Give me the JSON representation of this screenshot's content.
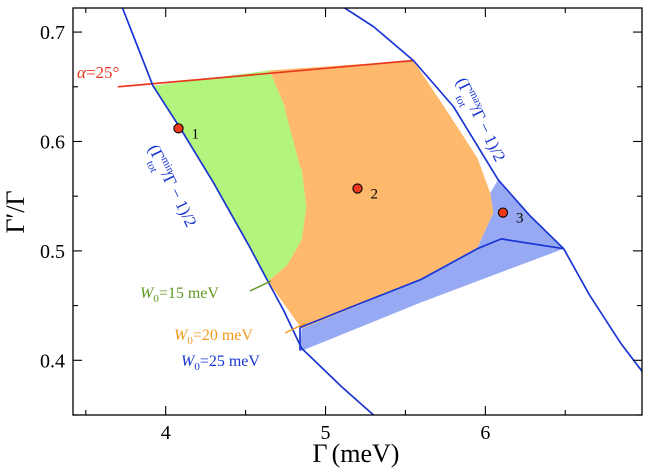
{
  "chart_data": {
    "type": "area",
    "xlabel": "Γ (meV)",
    "ylabel": "Γ′/Γ",
    "xlim": [
      3.42,
      6.98
    ],
    "ylim": [
      0.35,
      0.722
    ],
    "xticks": [
      4,
      5,
      6
    ],
    "xtick_labels": [
      "4",
      "5",
      "6"
    ],
    "yticks": [
      0.4,
      0.5,
      0.6,
      0.7
    ],
    "ytick_labels": [
      "0.4",
      "0.5",
      "0.6",
      "0.7"
    ],
    "colors": {
      "w15": "#b3f57c",
      "w20": "#feb96c",
      "w25": "#97a9f2",
      "alpha": "#e8381f",
      "gamma": "#1a36d2",
      "w15_label": "#5e9a22",
      "w20_label": "#f0981e",
      "w25_label": "#1a36d2",
      "point_fill": "#f0381c"
    },
    "regions": [
      {
        "name": "W0 = 15 meV",
        "color_key": "w15",
        "polygon": [
          [
            3.92,
            0.651
          ],
          [
            4.65,
            0.665
          ],
          [
            4.75,
            0.63
          ],
          [
            4.85,
            0.575
          ],
          [
            4.88,
            0.54
          ],
          [
            4.85,
            0.51
          ],
          [
            4.76,
            0.487
          ],
          [
            4.64,
            0.472
          ],
          [
            4.52,
            0.505
          ],
          [
            4.3,
            0.562
          ],
          [
            4.1,
            0.61
          ]
        ]
      },
      {
        "name": "W0 = 20 meV",
        "color_key": "w20",
        "polygon": [
          [
            4.65,
            0.665
          ],
          [
            5.55,
            0.674
          ],
          [
            5.75,
            0.63
          ],
          [
            5.95,
            0.585
          ],
          [
            6.03,
            0.553
          ],
          [
            6.05,
            0.535
          ],
          [
            5.95,
            0.503
          ],
          [
            5.6,
            0.475
          ],
          [
            5.2,
            0.45
          ],
          [
            4.85,
            0.429
          ],
          [
            4.64,
            0.472
          ],
          [
            4.76,
            0.487
          ],
          [
            4.85,
            0.51
          ],
          [
            4.88,
            0.54
          ],
          [
            4.85,
            0.575
          ],
          [
            4.75,
            0.63
          ]
        ]
      },
      {
        "name": "W0 = 25 meV",
        "color_key": "w25",
        "polygon": [
          [
            6.05,
            0.535
          ],
          [
            6.03,
            0.553
          ],
          [
            6.08,
            0.565
          ],
          [
            6.28,
            0.532
          ],
          [
            6.49,
            0.502
          ],
          [
            5.6,
            0.453
          ],
          [
            4.84,
            0.408
          ],
          [
            4.85,
            0.429
          ],
          [
            5.2,
            0.45
          ],
          [
            5.6,
            0.475
          ],
          [
            5.95,
            0.503
          ]
        ]
      }
    ],
    "lines": [
      {
        "name": "α = 25°",
        "color_key": "alpha",
        "points": [
          [
            3.7,
            0.65
          ],
          [
            5.55,
            0.674
          ]
        ]
      },
      {
        "name": "(Γtot^min/Γ − 1)/2",
        "color_key": "gamma",
        "points": [
          [
            3.73,
            0.722
          ],
          [
            3.92,
            0.651
          ],
          [
            4.1,
            0.61
          ],
          [
            4.3,
            0.562
          ],
          [
            4.52,
            0.505
          ],
          [
            4.64,
            0.472
          ],
          [
            4.74,
            0.445
          ],
          [
            4.85,
            0.411
          ],
          [
            5.1,
            0.376
          ],
          [
            5.3,
            0.35
          ]
        ]
      },
      {
        "name": "(Γtot^max/Γ − 1)/2",
        "color_key": "gamma",
        "points": [
          [
            5.12,
            0.722
          ],
          [
            5.3,
            0.705
          ],
          [
            5.55,
            0.674
          ],
          [
            5.8,
            0.632
          ],
          [
            6.08,
            0.565
          ],
          [
            6.28,
            0.532
          ],
          [
            6.49,
            0.502
          ],
          [
            6.65,
            0.46
          ],
          [
            6.85,
            0.415
          ],
          [
            6.98,
            0.39
          ]
        ]
      },
      {
        "name": "W0 = 20 meV boundary",
        "color_key": "w20",
        "points": [
          [
            4.75,
            0.63
          ],
          [
            4.85,
            0.575
          ]
        ]
      },
      {
        "name": "W0 = 25 meV boundary",
        "color_key": "gamma",
        "points": [
          [
            4.84,
            0.43
          ],
          [
            5.2,
            0.451
          ],
          [
            5.6,
            0.474
          ],
          [
            5.95,
            0.502
          ],
          [
            6.1,
            0.511
          ],
          [
            6.49,
            0.502
          ]
        ]
      },
      {
        "name": "lower W0 = 25 meV edge",
        "color_key": "gamma",
        "points": [
          [
            4.84,
            0.43
          ],
          [
            4.84,
            0.409
          ]
        ]
      }
    ],
    "points": [
      {
        "label": "1",
        "x": 4.08,
        "y": 0.612
      },
      {
        "label": "2",
        "x": 5.2,
        "y": 0.557
      },
      {
        "label": "3",
        "x": 6.11,
        "y": 0.535
      }
    ],
    "annotations": {
      "alpha": "α = 25°",
      "gamma_min": "(Γtotmin/Γ − 1)/2",
      "gamma_max": "(Γtotmax/Γ − 1)/2",
      "w15": "W0 = 15 meV",
      "w20": "W0 = 20 meV",
      "w25": "W0 = 25 meV"
    }
  },
  "axes": {
    "xlabel_main": "Γ",
    "xlabel_unit": "(meV)",
    "ylabel_text": "Γ′/Γ"
  },
  "labels": {
    "alpha_sym": "α",
    "alpha_eq": "=",
    "alpha_val": "25°",
    "w_sym": "W",
    "w_sub": "0",
    "w_eq": "=",
    "w15_val": "15 meV",
    "w20_val": "20 meV",
    "w25_val": "25 meV",
    "gmin_open": "(Γ",
    "gmin_sup": "min",
    "gmin_sub": "tot",
    "gmin_close": "/Γ − 1)/2",
    "gmax_open": "(Γ",
    "gmax_sup": "max",
    "gmax_sub": "tot",
    "gmax_close": "/Γ − 1)/2"
  }
}
